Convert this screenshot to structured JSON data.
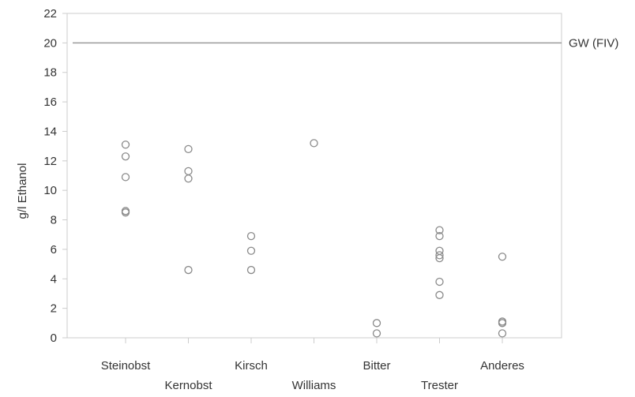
{
  "chart_data": {
    "type": "scatter",
    "ylabel": "g/l Ethanol",
    "xlabel": "",
    "ylim": [
      0,
      22
    ],
    "yticks": [
      "0",
      "2",
      "4",
      "6",
      "8",
      "10",
      "12",
      "14",
      "16",
      "18",
      "20",
      "22"
    ],
    "grid": false,
    "categories": [
      "Steinobst",
      "Kernobst",
      "Kirsch",
      "Williams",
      "Bitter",
      "Trester",
      "Anderes"
    ],
    "series": [
      {
        "points": [
          {
            "category": "Steinobst",
            "values": [
              13.1,
              12.3,
              10.9,
              8.6,
              8.5
            ]
          },
          {
            "category": "Kernobst",
            "values": [
              12.8,
              11.3,
              10.8,
              4.6
            ]
          },
          {
            "category": "Kirsch",
            "values": [
              6.9,
              5.9,
              4.6
            ]
          },
          {
            "category": "Williams",
            "values": [
              13.2
            ]
          },
          {
            "category": "Bitter",
            "values": [
              1.0,
              0.3
            ]
          },
          {
            "category": "Trester",
            "values": [
              7.3,
              6.9,
              5.9,
              5.6,
              5.4,
              3.8,
              2.9
            ]
          },
          {
            "category": "Anderes",
            "values": [
              5.5,
              1.1,
              1.0,
              0.3
            ]
          }
        ]
      }
    ],
    "reference_line": {
      "value": 20,
      "label": "GW (FIV)"
    },
    "colors": {
      "marker": "#8a8a8a",
      "reference_line": "#9a9a9a",
      "axis": "#cccccc",
      "text": "#333333"
    }
  }
}
